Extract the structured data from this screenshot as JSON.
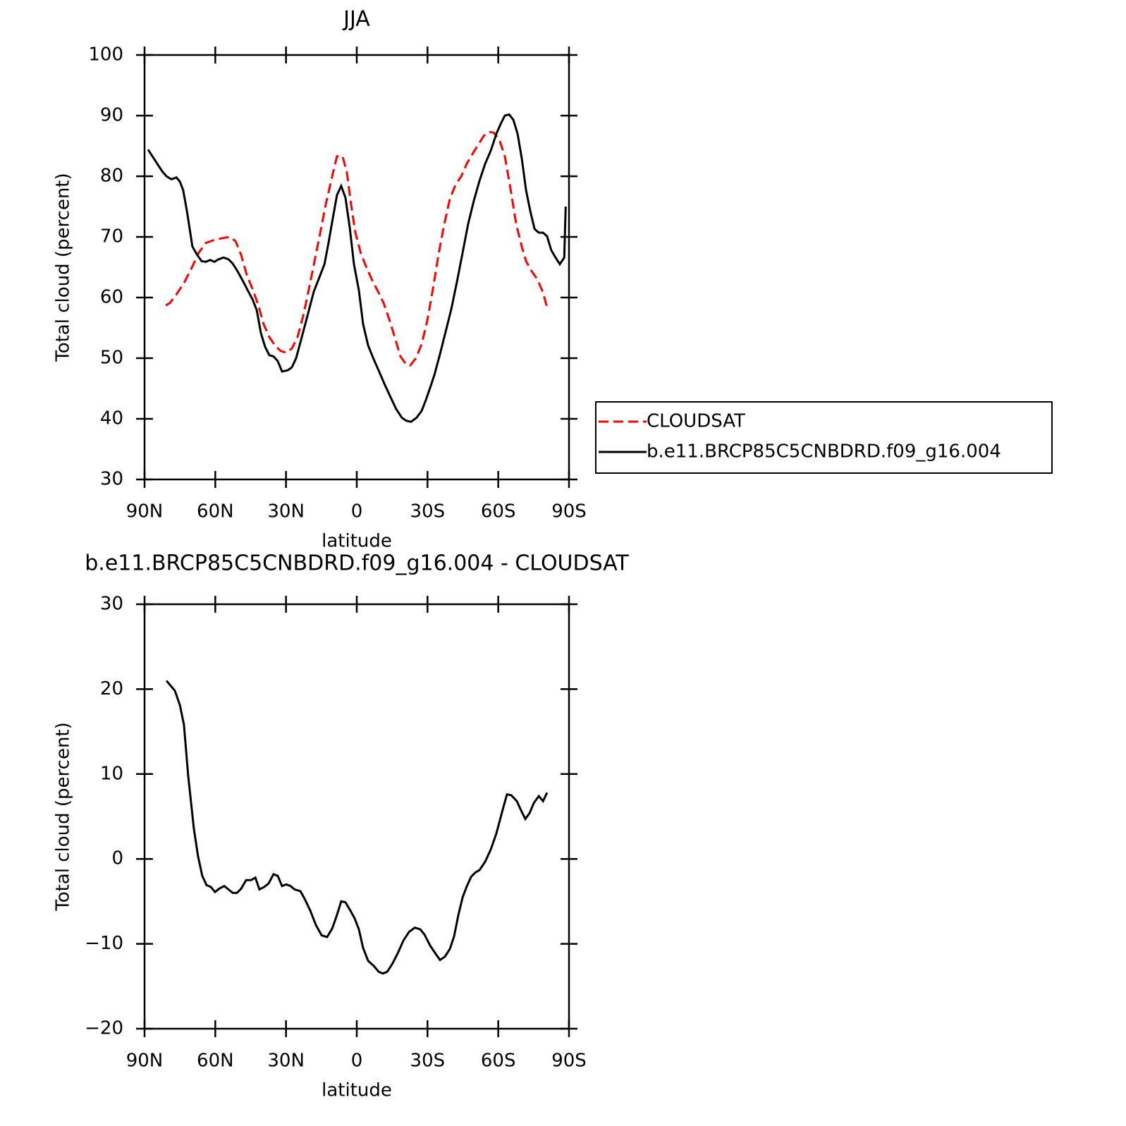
{
  "chart_data": [
    {
      "type": "line",
      "title": "JJA",
      "ylabel": "Total cloud (percent)",
      "xlabel": "latitude",
      "xlim": [
        90,
        -90
      ],
      "xticks": [
        {
          "value": 90,
          "label": "90N"
        },
        {
          "value": 60,
          "label": "60N"
        },
        {
          "value": 30,
          "label": "30N"
        },
        0,
        {
          "value": -30,
          "label": "30S"
        },
        {
          "value": -60,
          "label": "60S"
        },
        {
          "value": -90,
          "label": "90S"
        }
      ],
      "ylim": [
        30,
        100
      ],
      "yticks": [
        30,
        40,
        50,
        60,
        70,
        80,
        90,
        100
      ],
      "legend": "right",
      "series": [
        {
          "name": "CLOUDSAT",
          "color": "#ff0000",
          "style": "dashed",
          "x": [
            81,
            79.2,
            76.5,
            73,
            70,
            67,
            64,
            60.4,
            56.8,
            53.8,
            51.4,
            49,
            46.6,
            44.2,
            41.8,
            39.5,
            37.1,
            34.7,
            32.3,
            29.9,
            27.5,
            25.1,
            22.7,
            20.3,
            17.9,
            15.5,
            13.2,
            10.8,
            8.4,
            6,
            4.2,
            2.4,
            0.6,
            -1.8,
            -4.2,
            -6.6,
            -9,
            -11.4,
            -13.7,
            -16.1,
            -18.5,
            -20.9,
            -22.7,
            -25.1,
            -27.5,
            -29.9,
            -32.3,
            -34.7,
            -37.1,
            -39.5,
            -41.9,
            -44.3,
            -46.7,
            -49.1,
            -51.5,
            -53.9,
            -56.3,
            -58.1,
            -60.5,
            -62.8,
            -65.2,
            -67.6,
            -70,
            -71.8,
            -74.2,
            -76.6,
            -79,
            -80.7
          ],
          "values": [
            58.7,
            59.1,
            60.5,
            62.6,
            64.9,
            67.4,
            69,
            69.5,
            69.8,
            70,
            69.3,
            67,
            63.7,
            61.4,
            58.8,
            55.6,
            53.5,
            52.1,
            51.2,
            50.9,
            51.6,
            53.5,
            57,
            61.4,
            66,
            70.7,
            75.3,
            79.4,
            83.3,
            83.3,
            80.6,
            75.3,
            70.7,
            67.2,
            64.9,
            62.8,
            61,
            59.1,
            56.5,
            53.5,
            50.3,
            49,
            48.8,
            50,
            52.3,
            56.2,
            61.4,
            67.2,
            72.1,
            76.3,
            78.6,
            80,
            82.1,
            83.7,
            85.2,
            86.7,
            87.3,
            87.2,
            86,
            83.3,
            77.9,
            72.1,
            68.4,
            66,
            64.3,
            63,
            60.8,
            58.4
          ]
        },
        {
          "name": "b.e11.BRCP85C5CNBDRD.f09_g16.004",
          "color": "#000000",
          "style": "solid",
          "x": [
            88.5,
            85,
            82.5,
            80.7,
            78.6,
            76.5,
            75,
            73.6,
            72,
            69.7,
            67.6,
            65.8,
            64,
            62.2,
            60.4,
            58.6,
            56.5,
            54.4,
            52.6,
            50.5,
            48.1,
            46,
            44.2,
            42.4,
            40.7,
            38.9,
            37.1,
            35.3,
            33.5,
            31.7,
            29.3,
            27.5,
            25.7,
            23.3,
            20.9,
            18.2,
            16.1,
            13.7,
            12,
            10.2,
            8.4,
            6.6,
            4.8,
            3,
            1.2,
            -0.9,
            -2.7,
            -4.8,
            -7.2,
            -9.6,
            -11.9,
            -14.3,
            -16.7,
            -19.1,
            -20.9,
            -23,
            -25.4,
            -27.5,
            -29.3,
            -31.1,
            -32.9,
            -35.3,
            -37.7,
            -40.1,
            -42.5,
            -44.8,
            -47.2,
            -49.6,
            -52,
            -54.4,
            -56.8,
            -59.2,
            -61,
            -62.8,
            -64.6,
            -66.4,
            -68.2,
            -70,
            -71.8,
            -73.6,
            -75.4,
            -77.2,
            -79,
            -80.7,
            -82.5,
            -84.3,
            -86.1,
            -88,
            -88.6
          ],
          "values": [
            84.4,
            82.3,
            80.8,
            80,
            79.5,
            79.8,
            79.1,
            77.7,
            74.2,
            68.4,
            67,
            66,
            65.9,
            66.2,
            65.9,
            66.3,
            66.6,
            66.3,
            65.6,
            64.3,
            62.6,
            61,
            59.7,
            57.9,
            54.2,
            51.9,
            50.5,
            50.3,
            49.5,
            47.8,
            48,
            48.5,
            50,
            53.5,
            57,
            61,
            63.1,
            65.5,
            69,
            73,
            76.9,
            78.4,
            76.5,
            71.6,
            65.5,
            61.2,
            55.6,
            52.1,
            49.8,
            47.7,
            45.6,
            43.6,
            41.6,
            40.2,
            39.7,
            39.5,
            40.2,
            41.3,
            43.1,
            45.1,
            47.2,
            50.7,
            54.4,
            58.1,
            62.6,
            67.2,
            72.1,
            75.9,
            79.2,
            82,
            84.2,
            87,
            88.6,
            90,
            90.2,
            89.3,
            87,
            82.9,
            77.7,
            74.2,
            71.3,
            70.7,
            70.7,
            70.1,
            67.8,
            66.6,
            65.5,
            66.6,
            75
          ]
        }
      ]
    },
    {
      "type": "line",
      "title": "b.e11.BRCP85C5CNBDRD.f09_g16.004 - CLOUDSAT",
      "ylabel": "Total cloud (percent)",
      "xlabel": "latitude",
      "xlim": [
        90,
        -90
      ],
      "xticks": [
        {
          "value": 90,
          "label": "90N"
        },
        {
          "value": 60,
          "label": "60N"
        },
        {
          "value": 30,
          "label": "30N"
        },
        0,
        {
          "value": -30,
          "label": "30S"
        },
        {
          "value": -60,
          "label": "60S"
        },
        {
          "value": -90,
          "label": "90S"
        }
      ],
      "ylim": [
        -20,
        30
      ],
      "yticks": [
        {
          "value": -20,
          "label": "−20"
        },
        {
          "value": -10,
          "label": "−10"
        },
        0,
        10,
        20,
        30
      ],
      "color": "#000000",
      "x": [
        80.7,
        77.1,
        75,
        73.3,
        71.5,
        69.1,
        67.3,
        65.5,
        63.7,
        61.9,
        60.1,
        58.3,
        56.2,
        54.4,
        52.6,
        50.8,
        49,
        46.9,
        44.8,
        43,
        41.3,
        39.2,
        37.4,
        35.3,
        33.5,
        31.7,
        29.9,
        28.1,
        26.3,
        23.9,
        22.1,
        19.7,
        17.3,
        14.9,
        12.6,
        10.4,
        8.4,
        6.6,
        4.8,
        2.7,
        0.9,
        -0.9,
        -2.7,
        -4.8,
        -7.2,
        -9.3,
        -11.1,
        -12.9,
        -15,
        -17.4,
        -19.8,
        -22.2,
        -24.6,
        -26.9,
        -28.7,
        -31.1,
        -33.5,
        -35.3,
        -37.4,
        -39.5,
        -41.3,
        -43.1,
        -44.9,
        -46.7,
        -48.5,
        -50.3,
        -52.1,
        -54.5,
        -56.8,
        -59.2,
        -61.6,
        -63.7,
        -65.5,
        -67.9,
        -69.7,
        -71.5,
        -73.3,
        -75.1,
        -77.2,
        -79,
        -80.7
      ],
      "values": [
        21,
        19.8,
        18.1,
        15.8,
        9.8,
        3.6,
        0.3,
        -2,
        -3.1,
        -3.3,
        -3.9,
        -3.5,
        -3.2,
        -3.6,
        -4,
        -4,
        -3.5,
        -2.5,
        -2.5,
        -2.2,
        -3.6,
        -3.3,
        -2.9,
        -1.8,
        -2,
        -3.2,
        -3,
        -3.2,
        -3.6,
        -3.8,
        -4.7,
        -6.1,
        -7.8,
        -9,
        -9.2,
        -8.2,
        -6.6,
        -5,
        -5.1,
        -6.1,
        -7,
        -8.3,
        -10.5,
        -12,
        -12.6,
        -13.3,
        -13.5,
        -13.3,
        -12.4,
        -11.1,
        -9.6,
        -8.6,
        -8.1,
        -8.3,
        -8.9,
        -10.2,
        -11.2,
        -11.9,
        -11.5,
        -10.6,
        -9.1,
        -6.6,
        -4.5,
        -3.2,
        -2.1,
        -1.6,
        -1.3,
        -0.3,
        1.1,
        3,
        5.5,
        7.6,
        7.5,
        6.8,
        5.7,
        4.7,
        5.4,
        6.6,
        7.4,
        6.8,
        7.8
      ]
    }
  ]
}
